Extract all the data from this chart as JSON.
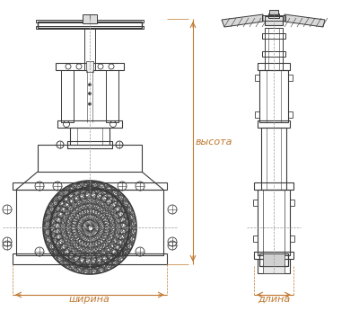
{
  "bg_color": "#ffffff",
  "line_color": "#3a3a3a",
  "dim_color": "#c07830",
  "label_shirna": "ширина",
  "label_dlina": "длина",
  "label_vysota": "высота",
  "fig_width": 4.0,
  "fig_height": 3.46,
  "dpi": 100
}
